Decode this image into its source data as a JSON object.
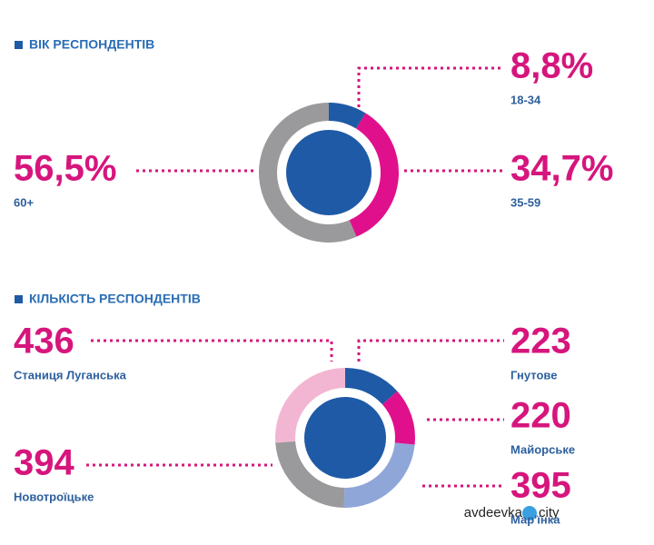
{
  "chart_data": [
    {
      "type": "donut",
      "title": "ВІК РЕСПОНДЕНТІВ",
      "categories": [
        "18-34",
        "35-59",
        "60+"
      ],
      "values": [
        8.8,
        34.7,
        56.5
      ],
      "value_labels": [
        "8,8%",
        "34,7%",
        "56,5%"
      ],
      "colors": [
        "#1f5aa6",
        "#e0108c",
        "#9a9a9c"
      ]
    },
    {
      "type": "donut",
      "title": "КІЛЬКІСТЬ РЕСПОНДЕНТІВ",
      "categories": [
        "Гнутове",
        "Майорське",
        "Мар'їнка",
        "Новотроїцьке",
        "Станиця Луганська"
      ],
      "values": [
        223,
        220,
        395,
        394,
        436
      ],
      "colors": [
        "#1f5aa6",
        "#e0108c",
        "#8fa6d8",
        "#9a9a9c",
        "#f2b6d2"
      ]
    }
  ],
  "watermark": [
    "avdeevka",
    "city"
  ]
}
